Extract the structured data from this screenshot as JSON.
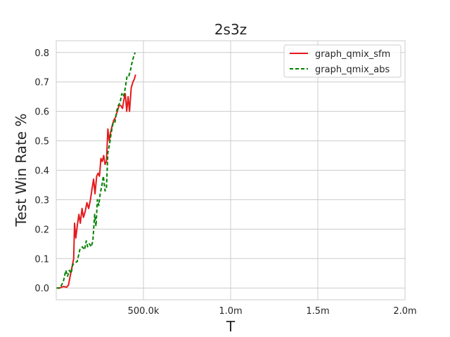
{
  "chart_data": {
    "type": "line",
    "title": "2s3z",
    "xlabel": "T",
    "ylabel": "Test Win Rate %",
    "xlim": [
      0,
      2000000
    ],
    "ylim": [
      -0.04,
      0.84
    ],
    "grid": true,
    "legend_position": "top-right",
    "x_ticks": [
      {
        "value": 500000,
        "label": "500.0k"
      },
      {
        "value": 1000000,
        "label": "1.0m"
      },
      {
        "value": 1500000,
        "label": "1.5m"
      },
      {
        "value": 2000000,
        "label": "2.0m"
      }
    ],
    "y_ticks": [
      {
        "value": 0.0,
        "label": "0.0"
      },
      {
        "value": 0.1,
        "label": "0.1"
      },
      {
        "value": 0.2,
        "label": "0.2"
      },
      {
        "value": 0.3,
        "label": "0.3"
      },
      {
        "value": 0.4,
        "label": "0.4"
      },
      {
        "value": 0.5,
        "label": "0.5"
      },
      {
        "value": 0.6,
        "label": "0.6"
      },
      {
        "value": 0.7,
        "label": "0.7"
      },
      {
        "value": 0.8,
        "label": "0.8"
      }
    ],
    "series": [
      {
        "name": "graph_qmix_sfm",
        "color": "#e41a1c",
        "dash": "solid",
        "points": [
          [
            0,
            0.0
          ],
          [
            20000,
            0.0
          ],
          [
            40000,
            0.005
          ],
          [
            60000,
            0.003
          ],
          [
            70000,
            0.01
          ],
          [
            80000,
            0.04
          ],
          [
            90000,
            0.07
          ],
          [
            100000,
            0.1
          ],
          [
            105000,
            0.22
          ],
          [
            112000,
            0.17
          ],
          [
            120000,
            0.21
          ],
          [
            130000,
            0.25
          ],
          [
            138000,
            0.22
          ],
          [
            148000,
            0.27
          ],
          [
            156000,
            0.24
          ],
          [
            166000,
            0.26
          ],
          [
            176000,
            0.29
          ],
          [
            186000,
            0.27
          ],
          [
            196000,
            0.3
          ],
          [
            206000,
            0.34
          ],
          [
            214000,
            0.37
          ],
          [
            222000,
            0.32
          ],
          [
            232000,
            0.38
          ],
          [
            240000,
            0.39
          ],
          [
            248000,
            0.38
          ],
          [
            256000,
            0.44
          ],
          [
            264000,
            0.43
          ],
          [
            272000,
            0.45
          ],
          [
            280000,
            0.42
          ],
          [
            288000,
            0.43
          ],
          [
            296000,
            0.54
          ],
          [
            304000,
            0.5
          ],
          [
            312000,
            0.53
          ],
          [
            320000,
            0.55
          ],
          [
            330000,
            0.57
          ],
          [
            340000,
            0.58
          ],
          [
            350000,
            0.6
          ],
          [
            360000,
            0.62
          ],
          [
            370000,
            0.62
          ],
          [
            380000,
            0.61
          ],
          [
            388000,
            0.64
          ],
          [
            396000,
            0.66
          ],
          [
            404000,
            0.6
          ],
          [
            412000,
            0.65
          ],
          [
            420000,
            0.6
          ],
          [
            430000,
            0.68
          ],
          [
            440000,
            0.7
          ],
          [
            448000,
            0.71
          ],
          [
            455000,
            0.725
          ]
        ]
      },
      {
        "name": "graph_qmix_abs",
        "color": "#008000",
        "dash": "dashed",
        "points": [
          [
            0,
            0.0
          ],
          [
            20000,
            0.0
          ],
          [
            40000,
            0.02
          ],
          [
            55000,
            0.06
          ],
          [
            65000,
            0.04
          ],
          [
            75000,
            0.06
          ],
          [
            85000,
            0.05
          ],
          [
            95000,
            0.08
          ],
          [
            105000,
            0.085
          ],
          [
            120000,
            0.09
          ],
          [
            135000,
            0.13
          ],
          [
            150000,
            0.14
          ],
          [
            162000,
            0.13
          ],
          [
            172000,
            0.16
          ],
          [
            180000,
            0.14
          ],
          [
            190000,
            0.15
          ],
          [
            200000,
            0.14
          ],
          [
            210000,
            0.16
          ],
          [
            220000,
            0.25
          ],
          [
            228000,
            0.21
          ],
          [
            236000,
            0.3
          ],
          [
            244000,
            0.28
          ],
          [
            252000,
            0.32
          ],
          [
            262000,
            0.35
          ],
          [
            270000,
            0.38
          ],
          [
            280000,
            0.33
          ],
          [
            288000,
            0.34
          ],
          [
            296000,
            0.46
          ],
          [
            306000,
            0.49
          ],
          [
            316000,
            0.53
          ],
          [
            326000,
            0.56
          ],
          [
            336000,
            0.56
          ],
          [
            346000,
            0.6
          ],
          [
            356000,
            0.62
          ],
          [
            366000,
            0.63
          ],
          [
            376000,
            0.66
          ],
          [
            386000,
            0.65
          ],
          [
            396000,
            0.68
          ],
          [
            406000,
            0.72
          ],
          [
            416000,
            0.72
          ],
          [
            426000,
            0.74
          ],
          [
            436000,
            0.77
          ],
          [
            446000,
            0.79
          ],
          [
            452000,
            0.8
          ]
        ]
      }
    ]
  }
}
